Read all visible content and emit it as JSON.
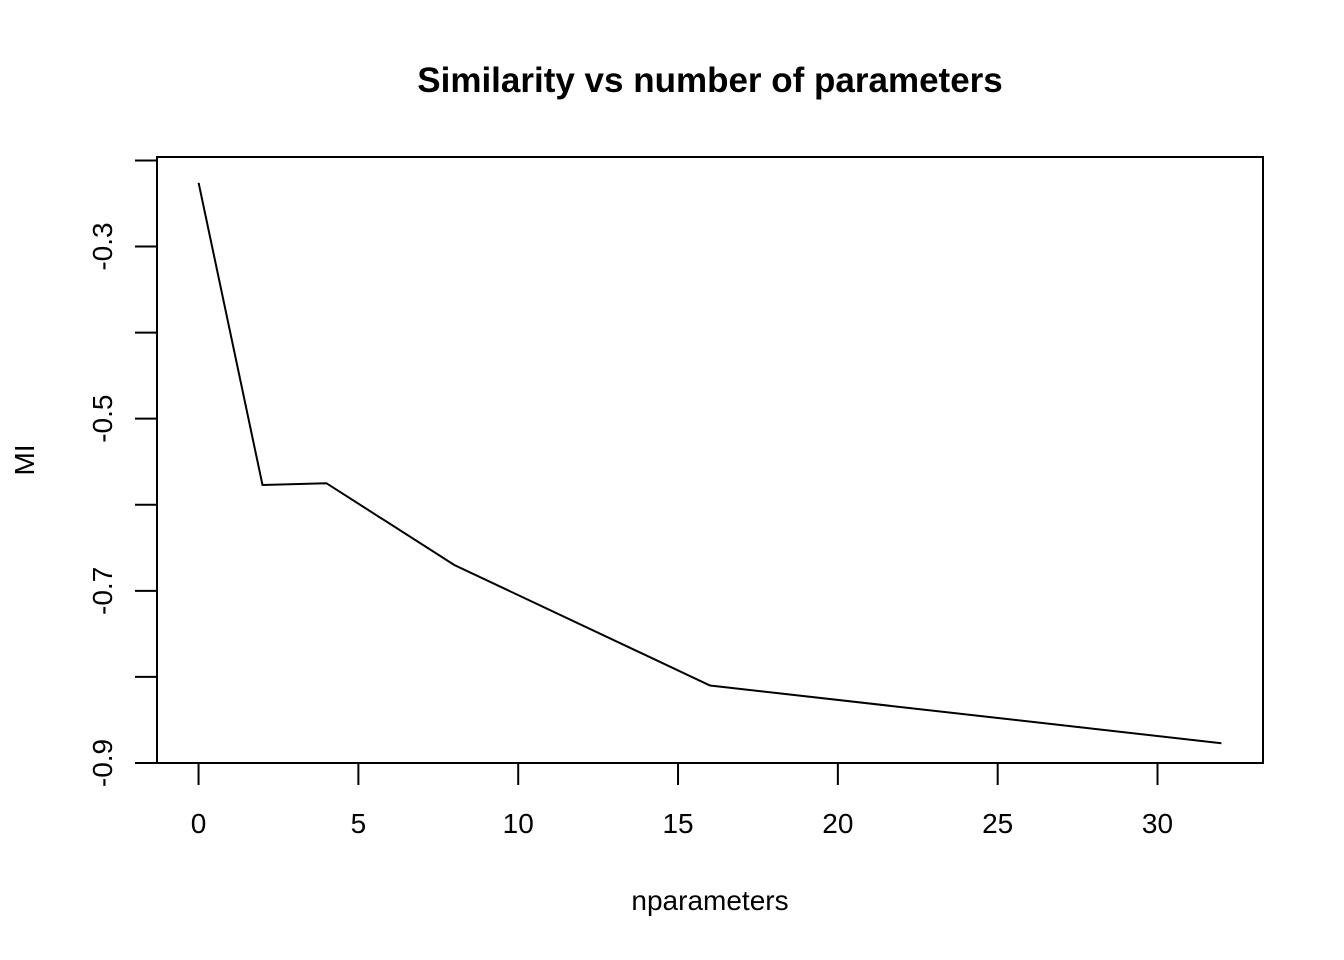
{
  "chart_data": {
    "type": "line",
    "title": "Similarity vs number of parameters",
    "xlabel": "nparameters",
    "ylabel": "MI",
    "x": [
      0,
      2,
      4,
      8,
      16,
      32
    ],
    "series": [
      {
        "values": [
          -0.226,
          -0.577,
          -0.575,
          -0.67,
          -0.81,
          -0.877
        ]
      }
    ],
    "xlim": [
      -1.3,
      33.3
    ],
    "ylim": [
      -0.9,
      -0.196
    ],
    "x_ticks": [
      0,
      5,
      10,
      15,
      20,
      25,
      30
    ],
    "x_tick_labels": [
      "0",
      "5",
      "10",
      "15",
      "20",
      "25",
      "30"
    ],
    "y_ticks": [
      -0.9,
      -0.8,
      -0.7,
      -0.6,
      -0.5,
      -0.4,
      -0.3,
      -0.2
    ],
    "y_tick_labels": [
      "-0.9",
      "",
      "-0.7",
      "",
      "-0.5",
      "",
      "-0.3",
      ""
    ],
    "grid": false,
    "legend": "none"
  }
}
